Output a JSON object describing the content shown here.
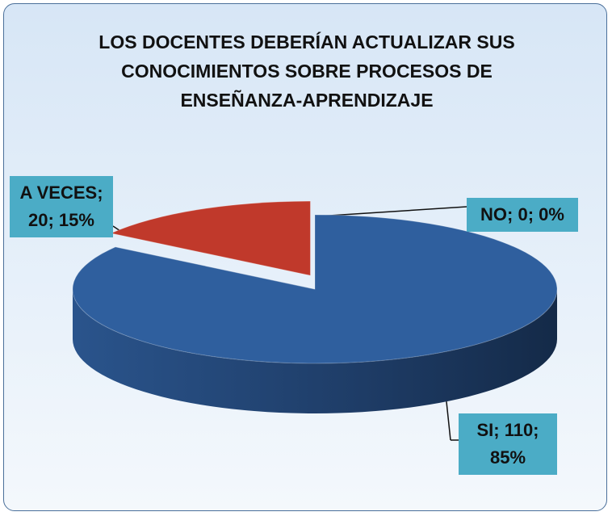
{
  "chart_data": {
    "type": "pie3d",
    "title": "LOS DOCENTES DEBERÍAN ACTUALIZAR SUS CONOCIMIENTOS SOBRE PROCESOS DE ENSEÑANZA-APRENDIZAJE",
    "categories": [
      "SI",
      "NO",
      "A VECES"
    ],
    "values": [
      110,
      0,
      20
    ],
    "value_labels": [
      "SI; 110; 85%",
      "NO; 0; 0%",
      "A VECES; 20; 15%"
    ],
    "colors": [
      "#2f5f9e",
      "#4f81bd",
      "#c0392b"
    ]
  }
}
